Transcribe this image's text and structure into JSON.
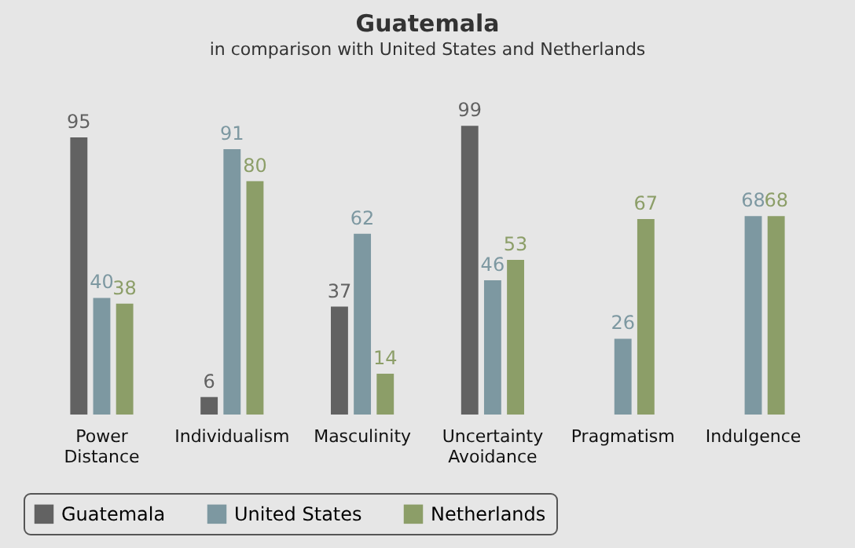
{
  "chart_data": {
    "type": "bar",
    "title": "Guatemala",
    "subtitle": "in comparison with United States and Netherlands",
    "categories": [
      "Power Distance",
      "Individualism",
      "Masculinity",
      "Uncertainty Avoidance",
      "Pragmatism",
      "Indulgence"
    ],
    "series": [
      {
        "name": "Guatemala",
        "color": "#626262",
        "values": [
          95,
          6,
          37,
          99,
          null,
          null
        ]
      },
      {
        "name": "United States",
        "color": "#7d98a1",
        "values": [
          40,
          91,
          62,
          46,
          26,
          68
        ]
      },
      {
        "name": "Netherlands",
        "color": "#8c9e68",
        "values": [
          38,
          80,
          14,
          53,
          67,
          68
        ]
      }
    ],
    "data_labels": true,
    "legend": "bottom",
    "grid": false
  }
}
